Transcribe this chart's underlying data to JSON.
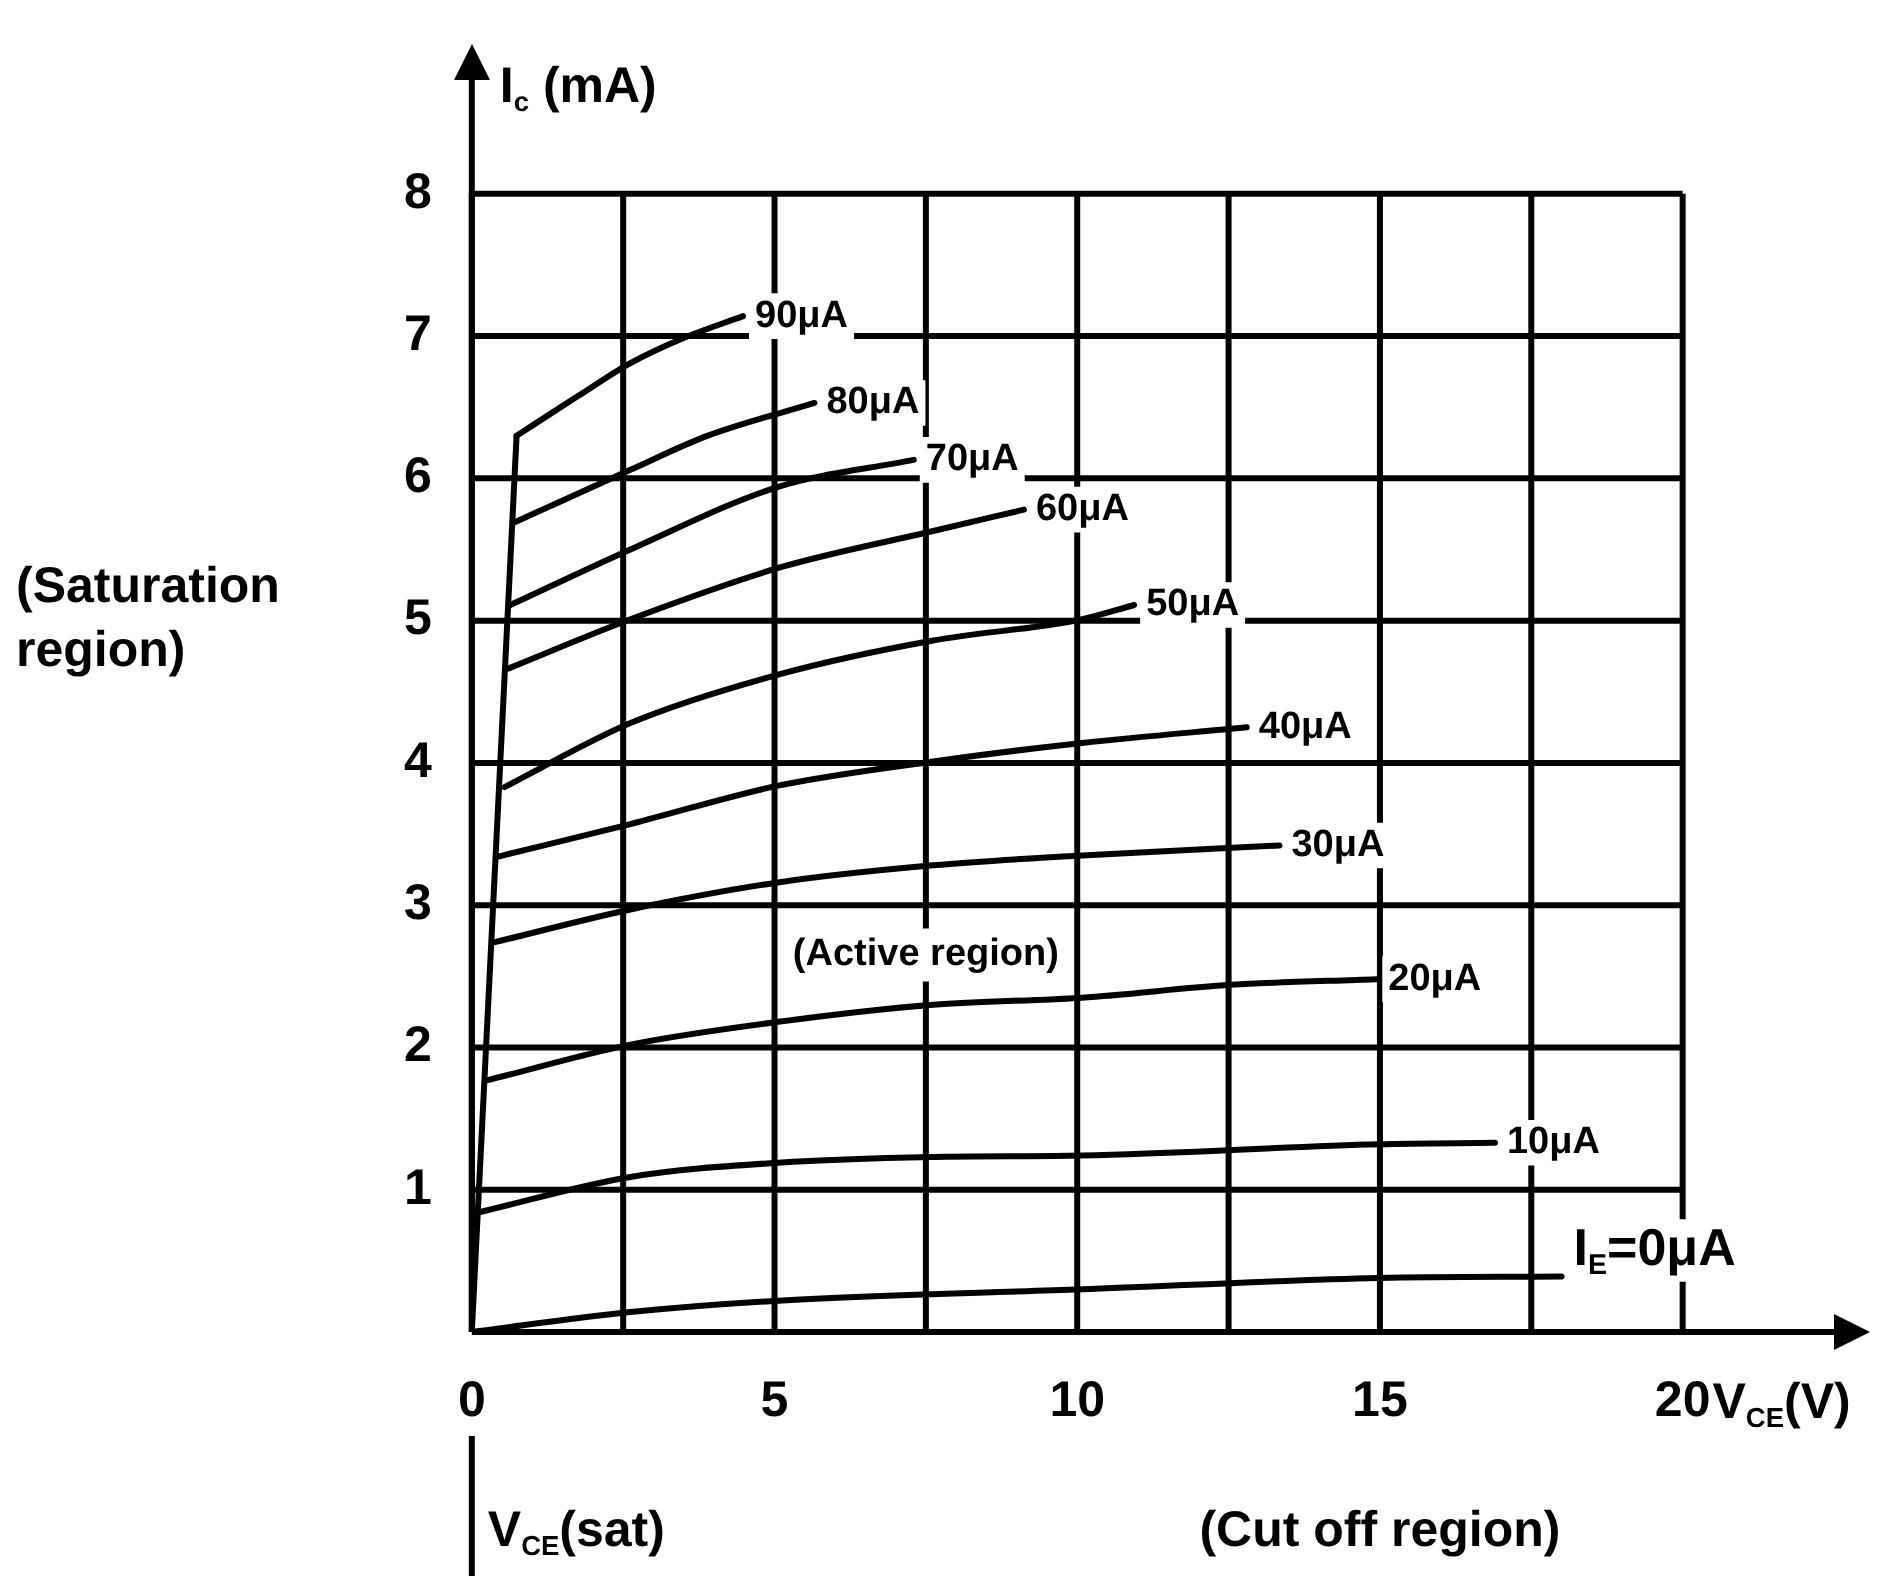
{
  "chart_data": {
    "type": "line",
    "xlabel": "V$_{CE}$(V)",
    "ylabel": "I$_{c}$ (mA)",
    "xlim": [
      0,
      22.5
    ],
    "ylim": [
      0,
      8.8
    ],
    "xticks": [
      0,
      {
        "value": 2.5,
        "label": null
      },
      5,
      {
        "value": 7.5,
        "label": null
      },
      10,
      {
        "value": 12.5,
        "label": null
      },
      15,
      {
        "value": 17.5,
        "label": null
      },
      20
    ],
    "yticks": [
      1,
      2,
      3,
      4,
      5,
      6,
      7,
      8
    ],
    "grid": true,
    "legend": false,
    "marker": "none",
    "line_style": "solid",
    "annotations": [
      "(Saturation region)",
      "(Active region)",
      "V$_{CE}$(sat)",
      "(Cut off region)"
    ],
    "series": [
      {
        "name": "90μA",
        "color": "#000000",
        "x": [
          0.74,
          1.76,
          2.62,
          3.46,
          4.48
        ],
        "values": [
          6.3,
          6.58,
          6.81,
          6.98,
          7.14
        ]
      },
      {
        "name": "80μA",
        "color": "#000000",
        "x": [
          0.7,
          2.62,
          3.9,
          5.66
        ],
        "values": [
          5.69,
          6.06,
          6.3,
          6.53
        ]
      },
      {
        "name": "70μA",
        "color": "#000000",
        "x": [
          0.64,
          2.62,
          5.06,
          7.3
        ],
        "values": [
          5.11,
          5.5,
          5.94,
          6.13
        ]
      },
      {
        "name": "60μA",
        "color": "#000000",
        "x": [
          0.58,
          2.62,
          5.06,
          7.62,
          9.12
        ],
        "values": [
          4.66,
          5.01,
          5.37,
          5.63,
          5.78
        ]
      },
      {
        "name": "50μA",
        "color": "#000000",
        "x": [
          0.54,
          2.62,
          5.06,
          7.62,
          10.08,
          10.94
        ],
        "values": [
          3.83,
          4.28,
          4.62,
          4.86,
          5.01,
          5.11
        ]
      },
      {
        "name": "40μA",
        "color": "#000000",
        "x": [
          0.42,
          2.62,
          5.06,
          7.62,
          10.08,
          12.8
        ],
        "values": [
          3.34,
          3.57,
          3.84,
          4.01,
          4.14,
          4.25
        ]
      },
      {
        "name": "30μA",
        "color": "#000000",
        "x": [
          0.38,
          2.62,
          5.06,
          7.62,
          10.08,
          13.34
        ],
        "values": [
          2.74,
          2.97,
          3.16,
          3.28,
          3.35,
          3.42
        ]
      },
      {
        "name": "20μA",
        "color": "#000000",
        "x": [
          0.26,
          2.62,
          5.06,
          7.62,
          10.08,
          12.54,
          14.94
        ],
        "values": [
          1.77,
          2.02,
          2.18,
          2.3,
          2.35,
          2.44,
          2.48
        ]
      },
      {
        "name": "10μA",
        "color": "#000000",
        "x": [
          0.1,
          2.62,
          5.06,
          7.62,
          10.08,
          14.98,
          16.9
        ],
        "values": [
          0.84,
          1.09,
          1.19,
          1.23,
          1.24,
          1.32,
          1.33
        ]
      },
      {
        "name": "I$_{E}$=0μA",
        "color": "#000000",
        "x": [
          0,
          2.62,
          5.06,
          10.08,
          14.98,
          18.0
        ],
        "values": [
          0,
          0.14,
          0.22,
          0.3,
          0.38,
          0.39
        ]
      },
      {
        "color": "#000000",
        "x": [
          0,
          0.74
        ],
        "values": [
          0,
          6.3
        ]
      }
    ]
  }
}
